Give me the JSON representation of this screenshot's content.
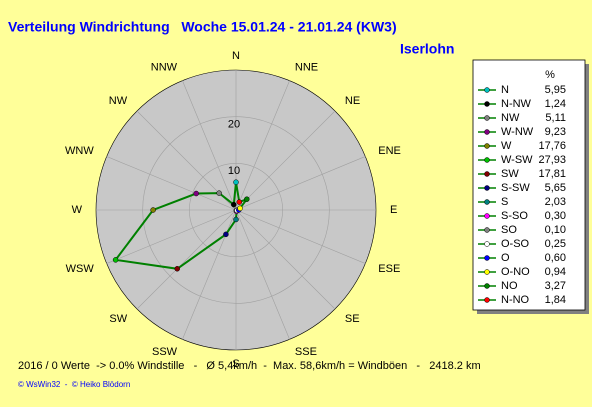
{
  "chart_data": {
    "type": "radar",
    "title": "Verteilung Windrichtung   Woche 15.01.24 - 21.01.24 (KW3)",
    "location": "Iserlohn",
    "axis_labels": [
      "N",
      "NNE",
      "NE",
      "ENE",
      "E",
      "ESE",
      "SE",
      "SSE",
      "S",
      "SSW",
      "SW",
      "WSW",
      "W",
      "WNW",
      "NW",
      "NNW"
    ],
    "rlim": [
      0,
      30
    ],
    "rticks": [
      10,
      20
    ],
    "unit_header": "%",
    "line_color": "#008000",
    "categories": [
      "N",
      "N-NW",
      "NW",
      "W-NW",
      "W",
      "W-SW",
      "SW",
      "S-SW",
      "S",
      "S-SO",
      "SO",
      "O-SO",
      "O",
      "O-NO",
      "NO",
      "N-NO"
    ],
    "values": [
      5.95,
      1.24,
      5.11,
      9.23,
      17.76,
      27.93,
      17.81,
      5.65,
      2.03,
      0.3,
      0.1,
      0.25,
      0.6,
      0.94,
      3.27,
      1.84
    ],
    "value_labels": [
      "5,95",
      "1,24",
      "5,11",
      "9,23",
      "17,76",
      "27,93",
      "17,81",
      "5,65",
      "2,03",
      "0,30",
      "0,10",
      "0,25",
      "0,60",
      "0,94",
      "3,27",
      "1,84"
    ],
    "colors": [
      "#00c0c0",
      "#000000",
      "#808080",
      "#800080",
      "#808000",
      "#00c000",
      "#800000",
      "#000080",
      "#008080",
      "#ff00ff",
      "#808080",
      "#ffffff",
      "#0000ff",
      "#ffff00",
      "#008000",
      "#ff0000"
    ],
    "footer": "2016 / 0 Werte  -> 0.0% Windstille   -   Ø 5,4km/h  -  Max. 58,6km/h = Windböen   -   2418.2 km",
    "credit": "© WsWin32  -  © Heiko Blödorn"
  }
}
